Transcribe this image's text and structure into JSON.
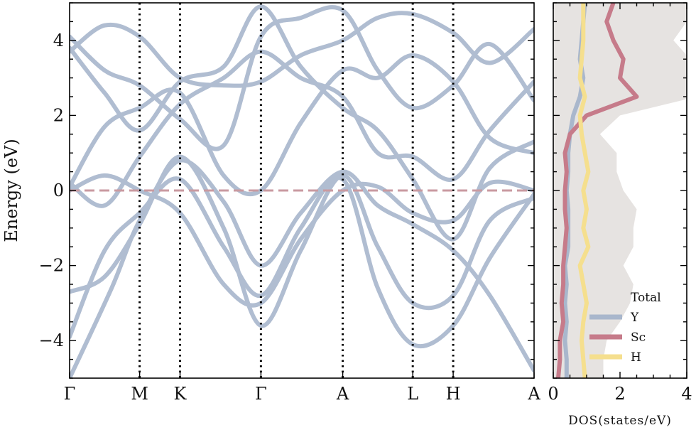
{
  "chart_data": [
    {
      "type": "line",
      "subtype": "band-structure",
      "ylabel": "Energy (eV)",
      "xlabel": "",
      "ylim": [
        -5,
        5
      ],
      "yticks": [
        -4,
        -2,
        0,
        2,
        4
      ],
      "kpoints": [
        {
          "label": "Γ",
          "pos": 0
        },
        {
          "label": "M",
          "pos": 1.0
        },
        {
          "label": "K",
          "pos": 1.577
        },
        {
          "label": "Γ",
          "pos": 2.732
        },
        {
          "label": "A",
          "pos": 3.9
        },
        {
          "label": "L",
          "pos": 4.9
        },
        {
          "label": "H",
          "pos": 5.477
        },
        {
          "label": "A",
          "pos": 6.632
        }
      ],
      "fermi_level": 0,
      "grid": false,
      "band_color": "#b0bdd1",
      "fermi_color": "#c99aa1",
      "series": [
        {
          "values": [
            [
              0,
              -5
            ],
            [
              0.6,
              -2.6
            ],
            [
              1.0,
              -0.8
            ],
            [
              1.577,
              0.8
            ],
            [
              2.2,
              -0.3
            ],
            [
              2.732,
              -2.0
            ],
            [
              3.3,
              -0.6
            ],
            [
              3.9,
              0.5
            ],
            [
              4.4,
              -0.4
            ],
            [
              4.9,
              -0.9
            ],
            [
              5.477,
              -1.6
            ],
            [
              6.0,
              -2.8
            ],
            [
              6.632,
              -4.8
            ]
          ]
        },
        {
          "values": [
            [
              0,
              -2.7
            ],
            [
              0.5,
              -2.3
            ],
            [
              1.0,
              -0.9
            ],
            [
              1.577,
              0.9
            ],
            [
              2.2,
              -1.0
            ],
            [
              2.732,
              -3.6
            ],
            [
              3.3,
              -1.6
            ],
            [
              3.9,
              0.4
            ],
            [
              4.4,
              -1.5
            ],
            [
              4.9,
              -3.0
            ],
            [
              5.477,
              -2.8
            ],
            [
              6.0,
              -0.8
            ],
            [
              6.632,
              -0.2
            ]
          ]
        },
        {
          "values": [
            [
              0,
              -3.9
            ],
            [
              0.5,
              -1.6
            ],
            [
              1.0,
              -0.6
            ],
            [
              1.577,
              0.3
            ],
            [
              2.2,
              -1.5
            ],
            [
              2.732,
              -2.8
            ],
            [
              3.3,
              -1.0
            ],
            [
              3.9,
              0.3
            ],
            [
              4.4,
              -2.6
            ],
            [
              4.9,
              -4.1
            ],
            [
              5.477,
              -3.6
            ],
            [
              6.0,
              -1.8
            ],
            [
              6.632,
              -0.1
            ]
          ]
        },
        {
          "values": [
            [
              0,
              0.0
            ],
            [
              0.5,
              0.4
            ],
            [
              1.0,
              0.0
            ],
            [
              1.577,
              -0.6
            ],
            [
              2.2,
              -2.5
            ],
            [
              2.732,
              -3.0
            ],
            [
              3.3,
              -1.3
            ],
            [
              3.9,
              0.0
            ],
            [
              4.4,
              0.1
            ],
            [
              4.9,
              -0.6
            ],
            [
              5.477,
              -0.8
            ],
            [
              6.0,
              0.2
            ],
            [
              6.632,
              0.0
            ]
          ]
        },
        {
          "values": [
            [
              0,
              0.1
            ],
            [
              0.5,
              1.7
            ],
            [
              1.0,
              2.2
            ],
            [
              1.577,
              2.6
            ],
            [
              2.2,
              0.4
            ],
            [
              2.732,
              0.0
            ],
            [
              3.3,
              1.8
            ],
            [
              3.9,
              3.2
            ],
            [
              4.4,
              3.0
            ],
            [
              4.9,
              3.6
            ],
            [
              5.477,
              2.9
            ],
            [
              6.0,
              1.4
            ],
            [
              6.632,
              1.0
            ]
          ]
        },
        {
          "values": [
            [
              0,
              0.2
            ],
            [
              0.5,
              -0.4
            ],
            [
              1.0,
              0.9
            ],
            [
              1.577,
              2.3
            ],
            [
              2.2,
              3.0
            ],
            [
              2.732,
              3.7
            ],
            [
              3.3,
              3.0
            ],
            [
              3.9,
              2.5
            ],
            [
              4.4,
              1.0
            ],
            [
              4.9,
              0.9
            ],
            [
              5.477,
              0.3
            ],
            [
              6.0,
              1.6
            ],
            [
              6.632,
              2.9
            ]
          ]
        },
        {
          "values": [
            [
              0,
              3.8
            ],
            [
              0.5,
              2.6
            ],
            [
              1.0,
              1.6
            ],
            [
              1.577,
              2.9
            ],
            [
              2.2,
              3.3
            ],
            [
              2.732,
              4.9
            ],
            [
              3.3,
              3.3
            ],
            [
              3.9,
              2.2
            ],
            [
              4.4,
              1.6
            ],
            [
              4.9,
              0.3
            ],
            [
              5.477,
              -1.3
            ],
            [
              6.0,
              0.6
            ],
            [
              6.632,
              1.3
            ]
          ]
        },
        {
          "values": [
            [
              0,
              3.7
            ],
            [
              0.5,
              4.4
            ],
            [
              1.0,
              4.1
            ],
            [
              1.577,
              3.0
            ],
            [
              2.2,
              2.8
            ],
            [
              2.732,
              2.9
            ],
            [
              3.3,
              3.6
            ],
            [
              3.9,
              4.0
            ],
            [
              4.4,
              4.6
            ],
            [
              4.9,
              4.7
            ],
            [
              5.477,
              4.2
            ],
            [
              6.0,
              3.4
            ],
            [
              6.632,
              4.3
            ]
          ]
        },
        {
          "values": [
            [
              0,
              4.1
            ],
            [
              0.5,
              3.2
            ],
            [
              1.0,
              2.8
            ],
            [
              1.577,
              1.9
            ],
            [
              2.2,
              1.2
            ],
            [
              2.732,
              4.1
            ],
            [
              3.3,
              4.6
            ],
            [
              3.9,
              4.8
            ],
            [
              4.4,
              3.2
            ],
            [
              4.9,
              2.2
            ],
            [
              5.477,
              2.8
            ],
            [
              6.0,
              3.9
            ],
            [
              6.632,
              2.4
            ]
          ]
        }
      ]
    },
    {
      "type": "area",
      "xlabel": "DOS(states/eV)",
      "ylabel": "",
      "xlim": [
        0,
        4
      ],
      "xticks": [
        0,
        2,
        4
      ],
      "ylim": [
        -5,
        5
      ],
      "legend": "bottom-right",
      "y": [
        -5,
        -4.5,
        -4,
        -3.5,
        -3,
        -2.5,
        -2,
        -1.5,
        -1,
        -0.5,
        0,
        0.5,
        1,
        1.5,
        2,
        2.5,
        3,
        3.5,
        4,
        4.5,
        5
      ],
      "series": [
        {
          "name": "Total",
          "color": "#e6e3e1",
          "style": "fill",
          "values": [
            1.5,
            1.5,
            1.6,
            2.0,
            2.3,
            2.4,
            2.1,
            2.4,
            2.4,
            2.5,
            2.1,
            1.9,
            1.9,
            1.4,
            2.0,
            4.3,
            4.5,
            4.1,
            3.6,
            4.0,
            4.2
          ]
        },
        {
          "name": "Y",
          "color": "#a9b7cc",
          "style": "line",
          "values": [
            0.4,
            0.4,
            0.35,
            0.4,
            0.35,
            0.4,
            0.35,
            0.45,
            0.45,
            0.45,
            0.4,
            0.45,
            0.45,
            0.5,
            0.6,
            0.8,
            0.9,
            0.8,
            0.85,
            0.9,
            0.95
          ]
        },
        {
          "name": "Sc",
          "color": "#c67b8a",
          "style": "line",
          "values": [
            0.15,
            0.2,
            0.2,
            0.3,
            0.25,
            0.3,
            0.3,
            0.35,
            0.4,
            0.35,
            0.35,
            0.4,
            0.35,
            0.5,
            1.0,
            2.5,
            2.0,
            2.1,
            1.8,
            1.6,
            1.8
          ]
        },
        {
          "name": "H",
          "color": "#f5df8e",
          "style": "line",
          "values": [
            0.95,
            0.9,
            0.85,
            0.9,
            1.0,
            0.9,
            0.8,
            1.05,
            0.9,
            1.0,
            0.9,
            1.05,
            0.95,
            0.85,
            0.8,
            0.95,
            0.8,
            0.85,
            0.9,
            0.9,
            0.9
          ]
        }
      ]
    }
  ]
}
